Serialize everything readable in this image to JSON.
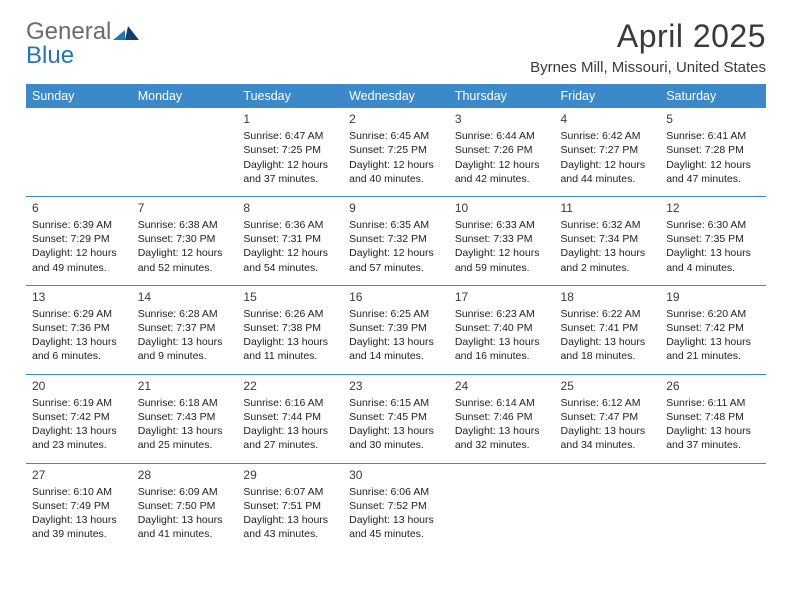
{
  "logo": {
    "text_general": "General",
    "text_blue": "Blue"
  },
  "title": "April 2025",
  "location": "Byrnes Mill, Missouri, United States",
  "colors": {
    "header_bg": "#3b89c9",
    "header_text": "#ffffff",
    "cell_border": "#3b89c9",
    "text": "#222222",
    "logo_gray": "#6b6b6b",
    "logo_blue": "#2474b6",
    "page_bg": "#ffffff"
  },
  "day_headers": [
    "Sunday",
    "Monday",
    "Tuesday",
    "Wednesday",
    "Thursday",
    "Friday",
    "Saturday"
  ],
  "weeks": [
    [
      null,
      null,
      {
        "n": "1",
        "sr": "Sunrise: 6:47 AM",
        "ss": "Sunset: 7:25 PM",
        "dl": "Daylight: 12 hours and 37 minutes."
      },
      {
        "n": "2",
        "sr": "Sunrise: 6:45 AM",
        "ss": "Sunset: 7:25 PM",
        "dl": "Daylight: 12 hours and 40 minutes."
      },
      {
        "n": "3",
        "sr": "Sunrise: 6:44 AM",
        "ss": "Sunset: 7:26 PM",
        "dl": "Daylight: 12 hours and 42 minutes."
      },
      {
        "n": "4",
        "sr": "Sunrise: 6:42 AM",
        "ss": "Sunset: 7:27 PM",
        "dl": "Daylight: 12 hours and 44 minutes."
      },
      {
        "n": "5",
        "sr": "Sunrise: 6:41 AM",
        "ss": "Sunset: 7:28 PM",
        "dl": "Daylight: 12 hours and 47 minutes."
      }
    ],
    [
      {
        "n": "6",
        "sr": "Sunrise: 6:39 AM",
        "ss": "Sunset: 7:29 PM",
        "dl": "Daylight: 12 hours and 49 minutes."
      },
      {
        "n": "7",
        "sr": "Sunrise: 6:38 AM",
        "ss": "Sunset: 7:30 PM",
        "dl": "Daylight: 12 hours and 52 minutes."
      },
      {
        "n": "8",
        "sr": "Sunrise: 6:36 AM",
        "ss": "Sunset: 7:31 PM",
        "dl": "Daylight: 12 hours and 54 minutes."
      },
      {
        "n": "9",
        "sr": "Sunrise: 6:35 AM",
        "ss": "Sunset: 7:32 PM",
        "dl": "Daylight: 12 hours and 57 minutes."
      },
      {
        "n": "10",
        "sr": "Sunrise: 6:33 AM",
        "ss": "Sunset: 7:33 PM",
        "dl": "Daylight: 12 hours and 59 minutes."
      },
      {
        "n": "11",
        "sr": "Sunrise: 6:32 AM",
        "ss": "Sunset: 7:34 PM",
        "dl": "Daylight: 13 hours and 2 minutes."
      },
      {
        "n": "12",
        "sr": "Sunrise: 6:30 AM",
        "ss": "Sunset: 7:35 PM",
        "dl": "Daylight: 13 hours and 4 minutes."
      }
    ],
    [
      {
        "n": "13",
        "sr": "Sunrise: 6:29 AM",
        "ss": "Sunset: 7:36 PM",
        "dl": "Daylight: 13 hours and 6 minutes."
      },
      {
        "n": "14",
        "sr": "Sunrise: 6:28 AM",
        "ss": "Sunset: 7:37 PM",
        "dl": "Daylight: 13 hours and 9 minutes."
      },
      {
        "n": "15",
        "sr": "Sunrise: 6:26 AM",
        "ss": "Sunset: 7:38 PM",
        "dl": "Daylight: 13 hours and 11 minutes."
      },
      {
        "n": "16",
        "sr": "Sunrise: 6:25 AM",
        "ss": "Sunset: 7:39 PM",
        "dl": "Daylight: 13 hours and 14 minutes."
      },
      {
        "n": "17",
        "sr": "Sunrise: 6:23 AM",
        "ss": "Sunset: 7:40 PM",
        "dl": "Daylight: 13 hours and 16 minutes."
      },
      {
        "n": "18",
        "sr": "Sunrise: 6:22 AM",
        "ss": "Sunset: 7:41 PM",
        "dl": "Daylight: 13 hours and 18 minutes."
      },
      {
        "n": "19",
        "sr": "Sunrise: 6:20 AM",
        "ss": "Sunset: 7:42 PM",
        "dl": "Daylight: 13 hours and 21 minutes."
      }
    ],
    [
      {
        "n": "20",
        "sr": "Sunrise: 6:19 AM",
        "ss": "Sunset: 7:42 PM",
        "dl": "Daylight: 13 hours and 23 minutes."
      },
      {
        "n": "21",
        "sr": "Sunrise: 6:18 AM",
        "ss": "Sunset: 7:43 PM",
        "dl": "Daylight: 13 hours and 25 minutes."
      },
      {
        "n": "22",
        "sr": "Sunrise: 6:16 AM",
        "ss": "Sunset: 7:44 PM",
        "dl": "Daylight: 13 hours and 27 minutes."
      },
      {
        "n": "23",
        "sr": "Sunrise: 6:15 AM",
        "ss": "Sunset: 7:45 PM",
        "dl": "Daylight: 13 hours and 30 minutes."
      },
      {
        "n": "24",
        "sr": "Sunrise: 6:14 AM",
        "ss": "Sunset: 7:46 PM",
        "dl": "Daylight: 13 hours and 32 minutes."
      },
      {
        "n": "25",
        "sr": "Sunrise: 6:12 AM",
        "ss": "Sunset: 7:47 PM",
        "dl": "Daylight: 13 hours and 34 minutes."
      },
      {
        "n": "26",
        "sr": "Sunrise: 6:11 AM",
        "ss": "Sunset: 7:48 PM",
        "dl": "Daylight: 13 hours and 37 minutes."
      }
    ],
    [
      {
        "n": "27",
        "sr": "Sunrise: 6:10 AM",
        "ss": "Sunset: 7:49 PM",
        "dl": "Daylight: 13 hours and 39 minutes."
      },
      {
        "n": "28",
        "sr": "Sunrise: 6:09 AM",
        "ss": "Sunset: 7:50 PM",
        "dl": "Daylight: 13 hours and 41 minutes."
      },
      {
        "n": "29",
        "sr": "Sunrise: 6:07 AM",
        "ss": "Sunset: 7:51 PM",
        "dl": "Daylight: 13 hours and 43 minutes."
      },
      {
        "n": "30",
        "sr": "Sunrise: 6:06 AM",
        "ss": "Sunset: 7:52 PM",
        "dl": "Daylight: 13 hours and 45 minutes."
      },
      null,
      null,
      null
    ]
  ]
}
